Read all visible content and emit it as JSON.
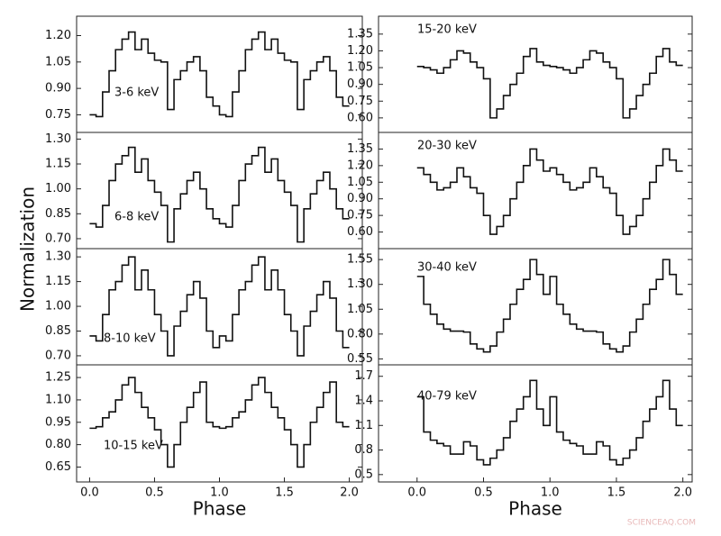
{
  "chart_data": [
    {
      "type": "step",
      "label": "3-6 keV",
      "ylabel": "Normalization",
      "x": [
        0,
        0.05,
        0.1,
        0.15,
        0.2,
        0.25,
        0.3,
        0.35,
        0.4,
        0.45,
        0.5,
        0.55,
        0.6,
        0.65,
        0.7,
        0.75,
        0.8,
        0.85,
        0.9,
        0.95,
        1,
        1.05,
        1.1,
        1.15,
        1.2,
        1.25,
        1.3,
        1.35,
        1.4,
        1.45,
        1.5,
        1.55,
        1.6,
        1.65,
        1.7,
        1.75,
        1.8,
        1.85,
        1.9,
        1.95
      ],
      "values": [
        0.75,
        0.74,
        0.88,
        1.0,
        1.12,
        1.18,
        1.22,
        1.12,
        1.18,
        1.1,
        1.06,
        1.05,
        0.78,
        0.95,
        1.0,
        1.05,
        1.08,
        1.0,
        0.85,
        0.8,
        0.75,
        0.74,
        0.88,
        1.0,
        1.12,
        1.18,
        1.22,
        1.12,
        1.18,
        1.1,
        1.06,
        1.05,
        0.78,
        0.95,
        1.0,
        1.05,
        1.08,
        1.0,
        0.85,
        0.8
      ],
      "xlim": [
        -0.1,
        2.1
      ],
      "ylim": [
        0.65,
        1.31
      ],
      "yticks": [
        {
          "value": 0.75,
          "label": "0.75"
        },
        {
          "value": 0.9,
          "label": "0.90"
        },
        {
          "value": 1.05,
          "label": "1.05"
        },
        {
          "value": 1.2,
          "label": "1.20"
        }
      ]
    },
    {
      "type": "step",
      "label": "6-8 keV",
      "x": [
        0,
        0.05,
        0.1,
        0.15,
        0.2,
        0.25,
        0.3,
        0.35,
        0.4,
        0.45,
        0.5,
        0.55,
        0.6,
        0.65,
        0.7,
        0.75,
        0.8,
        0.85,
        0.9,
        0.95,
        1,
        1.05,
        1.1,
        1.15,
        1.2,
        1.25,
        1.3,
        1.35,
        1.4,
        1.45,
        1.5,
        1.55,
        1.6,
        1.65,
        1.7,
        1.75,
        1.8,
        1.85,
        1.9,
        1.95
      ],
      "values": [
        0.79,
        0.77,
        0.9,
        1.05,
        1.15,
        1.2,
        1.25,
        1.1,
        1.18,
        1.05,
        0.98,
        0.9,
        0.68,
        0.88,
        0.97,
        1.05,
        1.1,
        1.0,
        0.88,
        0.82,
        0.79,
        0.77,
        0.9,
        1.05,
        1.15,
        1.2,
        1.25,
        1.1,
        1.18,
        1.05,
        0.98,
        0.9,
        0.68,
        0.88,
        0.97,
        1.05,
        1.1,
        1.0,
        0.88,
        0.82
      ],
      "xlim": [
        -0.1,
        2.1
      ],
      "ylim": [
        0.64,
        1.34
      ],
      "yticks": [
        {
          "value": 0.7,
          "label": "0.70"
        },
        {
          "value": 0.85,
          "label": "0.85"
        },
        {
          "value": 1.0,
          "label": "1.00"
        },
        {
          "value": 1.15,
          "label": "1.15"
        },
        {
          "value": 1.3,
          "label": "1.30"
        }
      ]
    },
    {
      "type": "step",
      "label": "8-10 keV",
      "x": [
        0,
        0.05,
        0.1,
        0.15,
        0.2,
        0.25,
        0.3,
        0.35,
        0.4,
        0.45,
        0.5,
        0.55,
        0.6,
        0.65,
        0.7,
        0.75,
        0.8,
        0.85,
        0.9,
        0.95,
        1,
        1.05,
        1.1,
        1.15,
        1.2,
        1.25,
        1.3,
        1.35,
        1.4,
        1.45,
        1.5,
        1.55,
        1.6,
        1.65,
        1.7,
        1.75,
        1.8,
        1.85,
        1.9,
        1.95
      ],
      "values": [
        0.82,
        0.79,
        0.95,
        1.1,
        1.15,
        1.25,
        1.3,
        1.1,
        1.22,
        1.1,
        0.95,
        0.85,
        0.7,
        0.88,
        0.97,
        1.07,
        1.15,
        1.05,
        0.85,
        0.75,
        0.82,
        0.79,
        0.95,
        1.1,
        1.15,
        1.25,
        1.3,
        1.1,
        1.22,
        1.1,
        0.95,
        0.85,
        0.7,
        0.88,
        0.97,
        1.07,
        1.15,
        1.05,
        0.85,
        0.75
      ],
      "xlim": [
        -0.1,
        2.1
      ],
      "ylim": [
        0.645,
        1.35
      ],
      "yticks": [
        {
          "value": 0.7,
          "label": "0.70"
        },
        {
          "value": 0.85,
          "label": "0.85"
        },
        {
          "value": 1.0,
          "label": "1.00"
        },
        {
          "value": 1.15,
          "label": "1.15"
        },
        {
          "value": 1.3,
          "label": "1.30"
        }
      ]
    },
    {
      "type": "step",
      "label": "10-15 keV",
      "xlabel": "Phase",
      "x": [
        0,
        0.05,
        0.1,
        0.15,
        0.2,
        0.25,
        0.3,
        0.35,
        0.4,
        0.45,
        0.5,
        0.55,
        0.6,
        0.65,
        0.7,
        0.75,
        0.8,
        0.85,
        0.9,
        0.95,
        1,
        1.05,
        1.1,
        1.15,
        1.2,
        1.25,
        1.3,
        1.35,
        1.4,
        1.45,
        1.5,
        1.55,
        1.6,
        1.65,
        1.7,
        1.75,
        1.8,
        1.85,
        1.9,
        1.95
      ],
      "values": [
        0.91,
        0.92,
        0.98,
        1.02,
        1.1,
        1.2,
        1.25,
        1.15,
        1.05,
        0.98,
        0.9,
        0.8,
        0.65,
        0.8,
        0.95,
        1.05,
        1.15,
        1.22,
        0.95,
        0.92,
        0.91,
        0.92,
        0.98,
        1.02,
        1.1,
        1.2,
        1.25,
        1.15,
        1.05,
        0.98,
        0.9,
        0.8,
        0.65,
        0.8,
        0.95,
        1.05,
        1.15,
        1.22,
        0.95,
        0.92
      ],
      "xlim": [
        -0.1,
        2.1
      ],
      "ylim": [
        0.55,
        1.335
      ],
      "xticks": [
        {
          "value": 0,
          "label": "0.0"
        },
        {
          "value": 0.5,
          "label": "0.5"
        },
        {
          "value": 1,
          "label": "1.0"
        },
        {
          "value": 1.5,
          "label": "1.5"
        },
        {
          "value": 2,
          "label": "2.0"
        }
      ],
      "yticks": [
        {
          "value": 0.65,
          "label": "0.65"
        },
        {
          "value": 0.8,
          "label": "0.80"
        },
        {
          "value": 0.95,
          "label": "0.95"
        },
        {
          "value": 1.1,
          "label": "1.10"
        },
        {
          "value": 1.25,
          "label": "1.25"
        }
      ]
    },
    {
      "type": "step",
      "label": "15-20 keV",
      "x": [
        0,
        0.05,
        0.1,
        0.15,
        0.2,
        0.25,
        0.3,
        0.35,
        0.4,
        0.45,
        0.5,
        0.55,
        0.6,
        0.65,
        0.7,
        0.75,
        0.8,
        0.85,
        0.9,
        0.95,
        1,
        1.05,
        1.1,
        1.15,
        1.2,
        1.25,
        1.3,
        1.35,
        1.4,
        1.45,
        1.5,
        1.55,
        1.6,
        1.65,
        1.7,
        1.75,
        1.8,
        1.85,
        1.9,
        1.95
      ],
      "values": [
        1.06,
        1.05,
        1.03,
        1.0,
        1.05,
        1.12,
        1.2,
        1.18,
        1.1,
        1.05,
        0.95,
        0.6,
        0.68,
        0.8,
        0.9,
        1.0,
        1.15,
        1.22,
        1.1,
        1.07,
        1.06,
        1.05,
        1.03,
        1.0,
        1.05,
        1.12,
        1.2,
        1.18,
        1.1,
        1.05,
        0.95,
        0.6,
        0.68,
        0.8,
        0.9,
        1.0,
        1.15,
        1.22,
        1.1,
        1.07
      ],
      "xlim": [
        -0.29,
        2.07
      ],
      "ylim": [
        0.47,
        1.51
      ],
      "yticks": [
        {
          "value": 0.6,
          "label": "0.60"
        },
        {
          "value": 0.75,
          "label": "0.75"
        },
        {
          "value": 0.9,
          "label": "0.90"
        },
        {
          "value": 1.05,
          "label": "1.05"
        },
        {
          "value": 1.2,
          "label": "1.20"
        },
        {
          "value": 1.35,
          "label": "1.35"
        }
      ]
    },
    {
      "type": "step",
      "label": "20-30 keV",
      "x": [
        0,
        0.05,
        0.1,
        0.15,
        0.2,
        0.25,
        0.3,
        0.35,
        0.4,
        0.45,
        0.5,
        0.55,
        0.6,
        0.65,
        0.7,
        0.75,
        0.8,
        0.85,
        0.9,
        0.95,
        1,
        1.05,
        1.1,
        1.15,
        1.2,
        1.25,
        1.3,
        1.35,
        1.4,
        1.45,
        1.5,
        1.55,
        1.6,
        1.65,
        1.7,
        1.75,
        1.8,
        1.85,
        1.9,
        1.95
      ],
      "values": [
        1.18,
        1.12,
        1.05,
        0.98,
        1.0,
        1.05,
        1.18,
        1.1,
        1.0,
        0.95,
        0.75,
        0.58,
        0.65,
        0.75,
        0.9,
        1.05,
        1.2,
        1.35,
        1.25,
        1.15,
        1.18,
        1.12,
        1.05,
        0.98,
        1.0,
        1.05,
        1.18,
        1.1,
        1.0,
        0.95,
        0.75,
        0.58,
        0.65,
        0.75,
        0.9,
        1.05,
        1.2,
        1.35,
        1.25,
        1.15
      ],
      "xlim": [
        -0.29,
        2.07
      ],
      "ylim": [
        0.45,
        1.5
      ],
      "yticks": [
        {
          "value": 0.6,
          "label": "0.60"
        },
        {
          "value": 0.75,
          "label": "0.75"
        },
        {
          "value": 0.9,
          "label": "0.90"
        },
        {
          "value": 1.05,
          "label": "1.05"
        },
        {
          "value": 1.2,
          "label": "1.20"
        },
        {
          "value": 1.35,
          "label": "1.35"
        }
      ]
    },
    {
      "type": "step",
      "label": "30-40 keV",
      "x": [
        0,
        0.05,
        0.1,
        0.15,
        0.2,
        0.25,
        0.3,
        0.35,
        0.4,
        0.45,
        0.5,
        0.55,
        0.6,
        0.65,
        0.7,
        0.75,
        0.8,
        0.85,
        0.9,
        0.95,
        1,
        1.05,
        1.1,
        1.15,
        1.2,
        1.25,
        1.3,
        1.35,
        1.4,
        1.45,
        1.5,
        1.55,
        1.6,
        1.65,
        1.7,
        1.75,
        1.8,
        1.85,
        1.9,
        1.95
      ],
      "values": [
        1.38,
        1.1,
        1.0,
        0.9,
        0.85,
        0.83,
        0.83,
        0.82,
        0.7,
        0.65,
        0.62,
        0.68,
        0.82,
        0.95,
        1.1,
        1.25,
        1.35,
        1.55,
        1.4,
        1.2,
        1.38,
        1.1,
        1.0,
        0.9,
        0.85,
        0.83,
        0.83,
        0.82,
        0.7,
        0.65,
        0.62,
        0.68,
        0.82,
        0.95,
        1.1,
        1.25,
        1.35,
        1.55,
        1.4,
        1.2
      ],
      "xlim": [
        -0.29,
        2.07
      ],
      "ylim": [
        0.49,
        1.66
      ],
      "yticks": [
        {
          "value": 0.55,
          "label": "0.55"
        },
        {
          "value": 0.8,
          "label": "0.80"
        },
        {
          "value": 1.05,
          "label": "1.05"
        },
        {
          "value": 1.3,
          "label": "1.30"
        },
        {
          "value": 1.55,
          "label": "1.55"
        }
      ]
    },
    {
      "type": "step",
      "label": "40-79 keV",
      "xlabel": "Phase",
      "x": [
        0,
        0.05,
        0.1,
        0.15,
        0.2,
        0.25,
        0.3,
        0.35,
        0.4,
        0.45,
        0.5,
        0.55,
        0.6,
        0.65,
        0.7,
        0.75,
        0.8,
        0.85,
        0.9,
        0.95,
        1,
        1.05,
        1.1,
        1.15,
        1.2,
        1.25,
        1.3,
        1.35,
        1.4,
        1.45,
        1.5,
        1.55,
        1.6,
        1.65,
        1.7,
        1.75,
        1.8,
        1.85,
        1.9,
        1.95
      ],
      "values": [
        1.45,
        1.02,
        0.92,
        0.88,
        0.85,
        0.75,
        0.75,
        0.9,
        0.85,
        0.68,
        0.62,
        0.7,
        0.8,
        0.95,
        1.15,
        1.3,
        1.45,
        1.65,
        1.3,
        1.1,
        1.45,
        1.02,
        0.92,
        0.88,
        0.85,
        0.75,
        0.75,
        0.9,
        0.85,
        0.68,
        0.62,
        0.7,
        0.8,
        0.95,
        1.15,
        1.3,
        1.45,
        1.65,
        1.3,
        1.1
      ],
      "xlim": [
        -0.29,
        2.07
      ],
      "ylim": [
        0.41,
        1.84
      ],
      "xticks": [
        {
          "value": 0,
          "label": "0.0"
        },
        {
          "value": 0.5,
          "label": "0.5"
        },
        {
          "value": 1,
          "label": "1.0"
        },
        {
          "value": 1.5,
          "label": "1.5"
        },
        {
          "value": 2,
          "label": "2.0"
        }
      ],
      "yticks": [
        0.5,
        0.8,
        1.1,
        1.4,
        1.7
      ]
    }
  ],
  "watermark": "SCIENCEAQ.COM"
}
